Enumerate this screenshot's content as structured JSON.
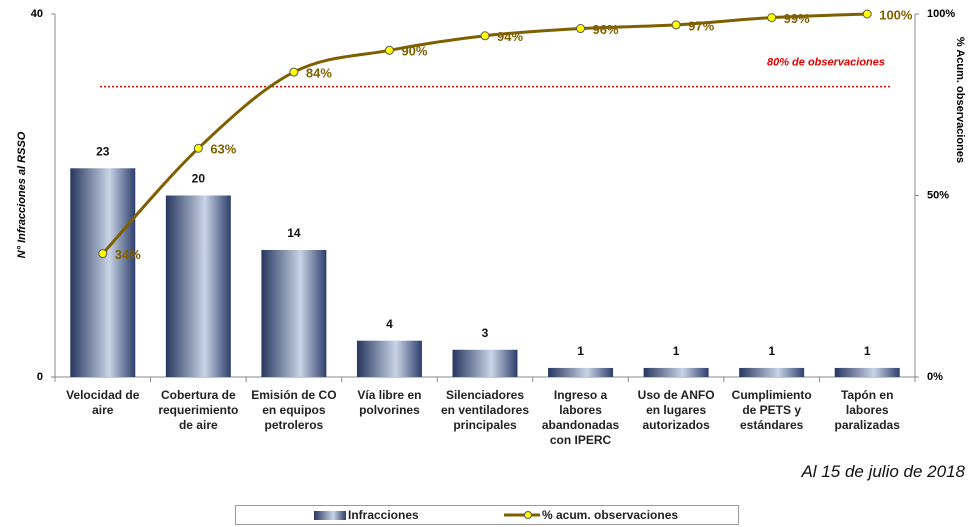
{
  "chart_data": {
    "type": "bar",
    "y_label": "N° Infracciones al RSSO",
    "y2_label": "% Acum. observaciones",
    "categories": [
      "Velocidad de aire",
      "Cobertura de requerimiento de aire",
      "Emisión de CO en equipos petroleros",
      "Vía libre en polvorines",
      "Silenciadores en ventiladores principales",
      "Ingreso a labores abandonadas con IPERC",
      "Uso de ANFO en lugares autorizados",
      "Cumplimiento de PETS y estándares",
      "Tapón en labores paralizadas"
    ],
    "series": [
      {
        "name": "Infracciones",
        "type": "bar",
        "color": "#34467a",
        "values": [
          23,
          20,
          14,
          4,
          3,
          1,
          1,
          1,
          1
        ]
      },
      {
        "name": "% acum. observaciones",
        "type": "line",
        "axis": "y2",
        "color": "#7f6000",
        "marker_color": "#ffff00",
        "values": [
          34,
          63,
          84,
          90,
          94,
          96,
          97,
          99,
          100
        ],
        "value_labels": [
          "34%",
          "63%",
          "84%",
          "90%",
          "94%",
          "96%",
          "97%",
          "99%",
          "100%"
        ]
      }
    ],
    "ylim": [
      0,
      40
    ],
    "yticks": [
      0,
      40
    ],
    "y2lim": [
      0,
      100
    ],
    "y2ticks": [
      {
        "value": 0,
        "label": "0%"
      },
      {
        "value": 50,
        "label": "50%"
      },
      {
        "value": 100,
        "label": "100%"
      }
    ],
    "annotations": [
      {
        "text": "80% de observaciones",
        "value": 80,
        "axis": "y2",
        "color": "#e00000"
      }
    ],
    "note": "Al 15 de julio de 2018",
    "legend": "bottom"
  }
}
